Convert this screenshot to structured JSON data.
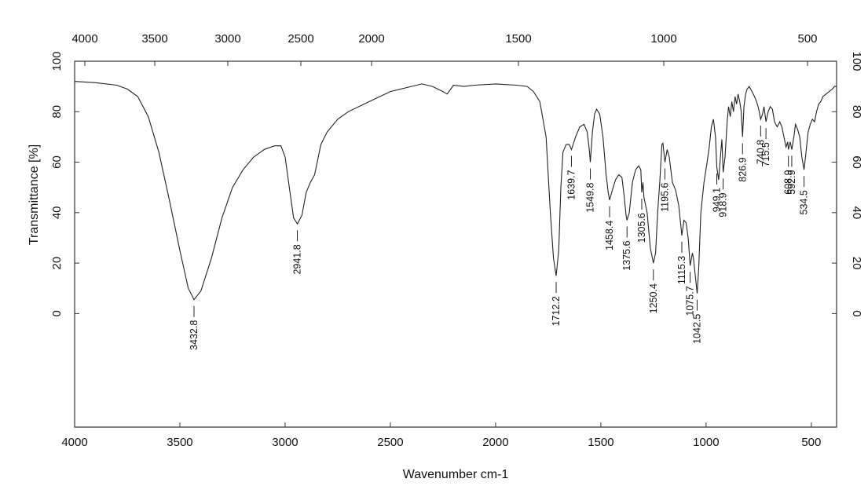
{
  "chart_data": {
    "type": "line",
    "xlabel": "Wavenumber cm-1",
    "ylabel": "Transmittance [%]",
    "xlim": [
      4000,
      380
    ],
    "ylim": [
      -45,
      100
    ],
    "x_reversed": true,
    "grid": false,
    "bottom_x_ticks": [
      4000,
      3500,
      3000,
      2500,
      2000,
      1500,
      1000,
      500
    ],
    "top_x_ticks": [
      4000,
      3500,
      3000,
      2500,
      2000,
      1500,
      1000,
      500
    ],
    "left_y_ticks": [
      0,
      20,
      40,
      60,
      80,
      100
    ],
    "right_y_ticks": [
      0,
      20,
      40,
      60,
      80,
      100
    ],
    "top_axis_scale": "nonlinear",
    "series": [
      {
        "color": "#222222",
        "points": [
          [
            4000,
            92
          ],
          [
            3900,
            91.5
          ],
          [
            3800,
            90.5
          ],
          [
            3750,
            89
          ],
          [
            3700,
            86
          ],
          [
            3650,
            78
          ],
          [
            3600,
            64
          ],
          [
            3550,
            45
          ],
          [
            3500,
            25
          ],
          [
            3460,
            10
          ],
          [
            3432.8,
            5.5
          ],
          [
            3400,
            9
          ],
          [
            3350,
            22
          ],
          [
            3300,
            38
          ],
          [
            3250,
            50
          ],
          [
            3200,
            57
          ],
          [
            3150,
            62
          ],
          [
            3100,
            65
          ],
          [
            3050,
            66.5
          ],
          [
            3020,
            66.5
          ],
          [
            3000,
            62
          ],
          [
            2980,
            50
          ],
          [
            2960,
            38
          ],
          [
            2941.8,
            35.5
          ],
          [
            2920,
            39
          ],
          [
            2900,
            48
          ],
          [
            2880,
            52
          ],
          [
            2860,
            55
          ],
          [
            2830,
            67
          ],
          [
            2800,
            72
          ],
          [
            2750,
            77
          ],
          [
            2700,
            80
          ],
          [
            2600,
            84
          ],
          [
            2500,
            88
          ],
          [
            2400,
            90
          ],
          [
            2350,
            91
          ],
          [
            2300,
            90
          ],
          [
            2250,
            88
          ],
          [
            2230,
            87
          ],
          [
            2200,
            90.5
          ],
          [
            2150,
            90
          ],
          [
            2100,
            90.5
          ],
          [
            2000,
            91
          ],
          [
            1900,
            90.5
          ],
          [
            1850,
            90
          ],
          [
            1820,
            88
          ],
          [
            1790,
            84
          ],
          [
            1760,
            70
          ],
          [
            1740,
            40
          ],
          [
            1725,
            22
          ],
          [
            1712.2,
            15
          ],
          [
            1700,
            25
          ],
          [
            1690,
            50
          ],
          [
            1680,
            64
          ],
          [
            1665,
            67
          ],
          [
            1650,
            67
          ],
          [
            1639.7,
            65
          ],
          [
            1620,
            70
          ],
          [
            1600,
            74
          ],
          [
            1580,
            75
          ],
          [
            1565,
            72
          ],
          [
            1555,
            65
          ],
          [
            1549.8,
            60
          ],
          [
            1540,
            72
          ],
          [
            1530,
            79
          ],
          [
            1520,
            81
          ],
          [
            1505,
            79
          ],
          [
            1490,
            70
          ],
          [
            1475,
            55
          ],
          [
            1465,
            48
          ],
          [
            1458.4,
            45
          ],
          [
            1445,
            49
          ],
          [
            1430,
            53
          ],
          [
            1415,
            55
          ],
          [
            1400,
            54
          ],
          [
            1390,
            47
          ],
          [
            1380,
            39
          ],
          [
            1375.6,
            37
          ],
          [
            1365,
            40
          ],
          [
            1350,
            52
          ],
          [
            1335,
            57
          ],
          [
            1320,
            58.5
          ],
          [
            1310,
            57
          ],
          [
            1305.6,
            48
          ],
          [
            1300,
            52
          ],
          [
            1295,
            46
          ],
          [
            1280,
            40
          ],
          [
            1265,
            26
          ],
          [
            1250.4,
            20
          ],
          [
            1240,
            24
          ],
          [
            1230,
            40
          ],
          [
            1220,
            52
          ],
          [
            1210,
            67
          ],
          [
            1205,
            67.5
          ],
          [
            1195.6,
            60
          ],
          [
            1185,
            65
          ],
          [
            1175,
            62
          ],
          [
            1160,
            52
          ],
          [
            1145,
            49
          ],
          [
            1130,
            43
          ],
          [
            1120,
            35
          ],
          [
            1115.3,
            31
          ],
          [
            1105,
            37
          ],
          [
            1095,
            36
          ],
          [
            1085,
            30
          ],
          [
            1075.7,
            19
          ],
          [
            1065,
            24
          ],
          [
            1060,
            22
          ],
          [
            1055,
            18
          ],
          [
            1042.5,
            8
          ],
          [
            1035,
            18
          ],
          [
            1025,
            40
          ],
          [
            1010,
            52
          ],
          [
            995,
            60
          ],
          [
            985,
            66
          ],
          [
            975,
            74
          ],
          [
            965,
            77
          ],
          [
            955,
            70
          ],
          [
            949.1,
            58
          ],
          [
            940,
            53
          ],
          [
            932,
            62
          ],
          [
            925,
            69
          ],
          [
            918.9,
            56
          ],
          [
            910,
            62
          ],
          [
            900,
            76
          ],
          [
            893,
            82
          ],
          [
            885,
            78
          ],
          [
            878,
            84
          ],
          [
            870,
            80
          ],
          [
            862,
            86
          ],
          [
            855,
            83
          ],
          [
            848,
            87
          ],
          [
            840,
            84
          ],
          [
            833,
            80
          ],
          [
            826.9,
            70
          ],
          [
            820,
            82
          ],
          [
            812,
            87
          ],
          [
            805,
            89
          ],
          [
            795,
            90
          ],
          [
            782,
            88
          ],
          [
            770,
            86
          ],
          [
            760,
            84
          ],
          [
            750,
            81
          ],
          [
            740.8,
            77
          ],
          [
            732,
            79
          ],
          [
            725,
            82
          ],
          [
            715.5,
            76
          ],
          [
            705,
            80
          ],
          [
            695,
            82
          ],
          [
            685,
            81
          ],
          [
            675,
            76
          ],
          [
            662,
            74
          ],
          [
            650,
            76
          ],
          [
            640,
            74
          ],
          [
            630,
            70
          ],
          [
            620,
            66
          ],
          [
            612,
            68
          ],
          [
            608.9,
            65
          ],
          [
            600,
            68
          ],
          [
            592.9,
            65
          ],
          [
            583,
            70
          ],
          [
            575,
            75
          ],
          [
            565,
            73
          ],
          [
            555,
            70
          ],
          [
            545,
            62
          ],
          [
            534.5,
            57
          ],
          [
            525,
            64
          ],
          [
            515,
            72
          ],
          [
            505,
            75
          ],
          [
            495,
            77
          ],
          [
            485,
            76
          ],
          [
            475,
            80
          ],
          [
            465,
            83
          ],
          [
            455,
            84
          ],
          [
            445,
            86
          ],
          [
            430,
            87
          ],
          [
            415,
            88
          ],
          [
            400,
            89
          ],
          [
            390,
            90
          ],
          [
            380,
            90
          ]
        ]
      }
    ],
    "peaks": [
      {
        "x": 3432.8,
        "label": "3432.8"
      },
      {
        "x": 2941.8,
        "label": "2941.8"
      },
      {
        "x": 1712.2,
        "label": "1712.2"
      },
      {
        "x": 1639.7,
        "label": "1639.7"
      },
      {
        "x": 1549.8,
        "label": "1549.8"
      },
      {
        "x": 1458.4,
        "label": "1458.4"
      },
      {
        "x": 1375.6,
        "label": "1375.6"
      },
      {
        "x": 1305.6,
        "label": "1305.6"
      },
      {
        "x": 1250.4,
        "label": "1250.4"
      },
      {
        "x": 1195.6,
        "label": "1195.6"
      },
      {
        "x": 1115.3,
        "label": "1115.3"
      },
      {
        "x": 1075.7,
        "label": "1075.7"
      },
      {
        "x": 1042.5,
        "label": "1042.5"
      },
      {
        "x": 949.1,
        "label": "949.1"
      },
      {
        "x": 918.9,
        "label": "918.9"
      },
      {
        "x": 826.9,
        "label": "826.9"
      },
      {
        "x": 740.8,
        "label": "740.8"
      },
      {
        "x": 715.5,
        "label": "715.5"
      },
      {
        "x": 608.9,
        "label": "608.9"
      },
      {
        "x": 592.9,
        "label": "592.9"
      },
      {
        "x": 534.5,
        "label": "534.5"
      }
    ]
  }
}
